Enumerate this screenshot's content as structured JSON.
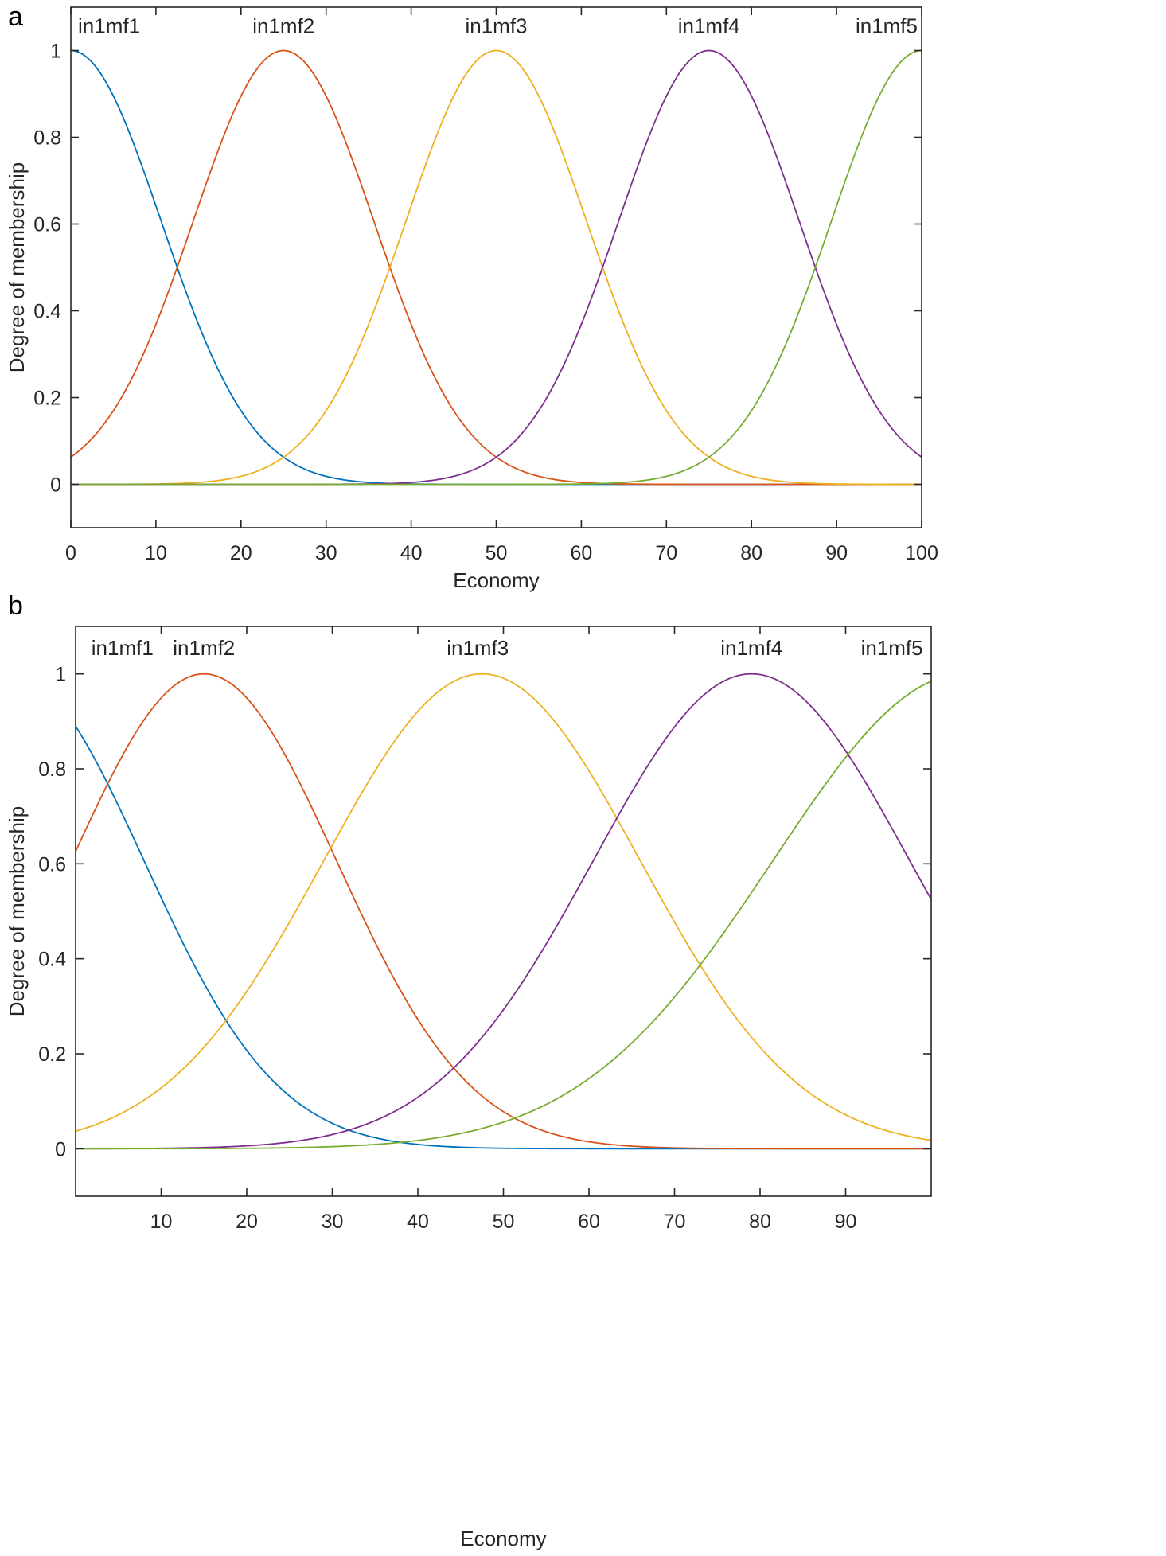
{
  "chart_data": [
    {
      "type": "line",
      "panel_label": "a",
      "title": "",
      "xlabel": "Economy",
      "ylabel": "Degree of membership",
      "xlim": [
        0,
        100
      ],
      "ylim": [
        -0.1,
        1.1
      ],
      "xticks": [
        0,
        10,
        20,
        30,
        40,
        50,
        60,
        70,
        80,
        90,
        100
      ],
      "xtick_labels": [
        "0",
        "10",
        "20",
        "30",
        "40",
        "50",
        "60",
        "70",
        "80",
        "90",
        "100"
      ],
      "yticks": [
        0,
        0.2,
        0.4,
        0.6,
        0.8,
        1
      ],
      "ytick_labels": [
        "0",
        "0.2",
        "0.4",
        "0.6",
        "0.8",
        "1"
      ],
      "grid": false,
      "series": [
        {
          "name": "in1mf1",
          "shape": "gaussian",
          "center": 0,
          "sigma": 10.62,
          "color": "#0072BD"
        },
        {
          "name": "in1mf2",
          "shape": "gaussian",
          "center": 25,
          "sigma": 10.62,
          "color": "#D95319"
        },
        {
          "name": "in1mf3",
          "shape": "gaussian",
          "center": 50,
          "sigma": 10.62,
          "color": "#EDB120"
        },
        {
          "name": "in1mf4",
          "shape": "gaussian",
          "center": 75,
          "sigma": 10.62,
          "color": "#7E2F8E"
        },
        {
          "name": "in1mf5",
          "shape": "gaussian",
          "center": 100,
          "sigma": 10.62,
          "color": "#77AC30"
        }
      ],
      "annotations": [
        {
          "text": "in1mf1",
          "x": 0,
          "y": 1.04,
          "anchor": "start"
        },
        {
          "text": "in1mf2",
          "x": 25,
          "y": 1.04,
          "anchor": "middle"
        },
        {
          "text": "in1mf3",
          "x": 50,
          "y": 1.04,
          "anchor": "middle"
        },
        {
          "text": "in1mf4",
          "x": 75,
          "y": 1.04,
          "anchor": "middle"
        },
        {
          "text": "in1mf5",
          "x": 100,
          "y": 1.04,
          "anchor": "end"
        }
      ]
    },
    {
      "type": "line",
      "panel_label": "b",
      "title": "",
      "xlabel": "Economy",
      "ylabel": "Degree of membership",
      "xlim": [
        0,
        100
      ],
      "ylim": [
        -0.1,
        1.1
      ],
      "xticks": [
        10,
        20,
        30,
        40,
        50,
        60,
        70,
        80,
        90
      ],
      "xtick_labels": [
        "10",
        "20",
        "30",
        "40",
        "50",
        "60",
        "70",
        "80",
        "90"
      ],
      "yticks": [
        0,
        0.2,
        0.4,
        0.6,
        0.8,
        1
      ],
      "ytick_labels": [
        "0",
        "0.2",
        "0.4",
        "0.6",
        "0.8",
        "1"
      ],
      "grid": false,
      "series": [
        {
          "name": "in1mf1",
          "shape": "gaussian",
          "center": -7.5,
          "sigma": 15.5,
          "color": "#0072BD"
        },
        {
          "name": "in1mf2",
          "shape": "gaussian",
          "center": 15,
          "sigma": 15.5,
          "color": "#D95319"
        },
        {
          "name": "in1mf3",
          "shape": "gaussian",
          "center": 47.5,
          "sigma": 18.5,
          "color": "#EDB120"
        },
        {
          "name": "in1mf4",
          "shape": "gaussian",
          "center": 79,
          "sigma": 18.5,
          "color": "#7E2F8E"
        },
        {
          "name": "in1mf5",
          "shape": "gaussian",
          "center": 104,
          "sigma": 22.5,
          "color": "#77AC30"
        }
      ],
      "annotations": [
        {
          "text": "in1mf1",
          "x": 1,
          "y": 1.04,
          "anchor": "start"
        },
        {
          "text": "in1mf2",
          "x": 15,
          "y": 1.04,
          "anchor": "middle"
        },
        {
          "text": "in1mf3",
          "x": 47,
          "y": 1.04,
          "anchor": "middle"
        },
        {
          "text": "in1mf4",
          "x": 79,
          "y": 1.04,
          "anchor": "middle"
        },
        {
          "text": "in1mf5",
          "x": 99.5,
          "y": 1.04,
          "anchor": "end"
        }
      ]
    }
  ]
}
